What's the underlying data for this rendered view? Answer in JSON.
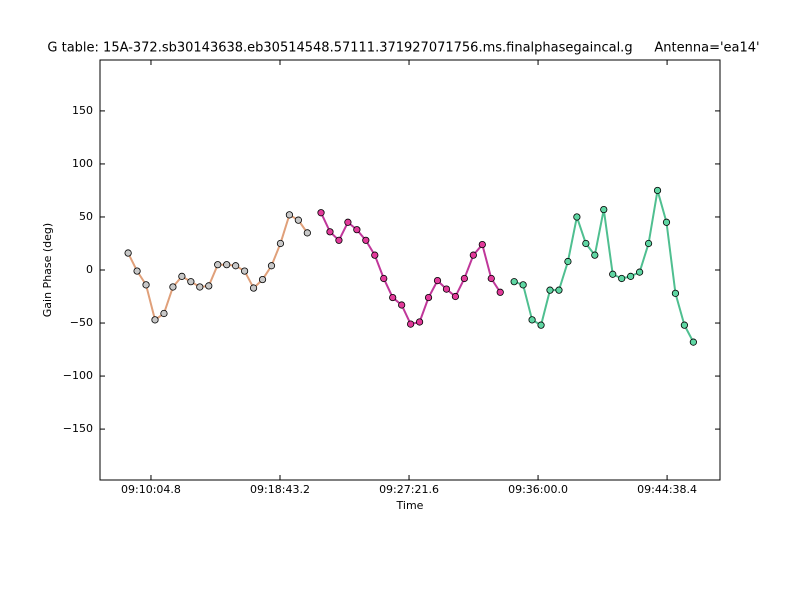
{
  "chart_data": {
    "type": "line",
    "title": "G table: 15A-372.sb30143638.eb30514548.57111.371927071756.ms.finalphasegaincal.g",
    "subtitle": "Antenna='ea14'",
    "x_label": "Time",
    "y_label": "Gain Phase (deg)",
    "xlim": [
      32800,
      35291
    ],
    "ylim": [
      -198,
      198
    ],
    "xticks": [
      {
        "value": 33004.8,
        "label": "09:10:04.8"
      },
      {
        "value": 33523.2,
        "label": "09:18:43.2"
      },
      {
        "value": 34041.6,
        "label": "09:27:21.6"
      },
      {
        "value": 34560,
        "label": "09:36:00.0"
      },
      {
        "value": 35078.4,
        "label": "09:44:38.4"
      }
    ],
    "yticks": [
      {
        "value": -150,
        "label": "−150"
      },
      {
        "value": -100,
        "label": "−100"
      },
      {
        "value": -50,
        "label": "−50"
      },
      0,
      50,
      100,
      150
    ],
    "grid": false,
    "series": [
      {
        "color": "#e0a07a",
        "marker_color": "#c8c8c8",
        "x": [
          32913,
          32949,
          32985,
          33021,
          33057,
          33093,
          33129,
          33165,
          33201,
          33237,
          33273,
          33309,
          33345,
          33381,
          33417,
          33453,
          33489,
          33525,
          33561,
          33597,
          33633
        ],
        "values": [
          16,
          -1,
          -14,
          -47,
          -41,
          -16,
          -6,
          -11,
          -16,
          -15,
          5,
          5,
          4,
          -1,
          -17,
          -9,
          4,
          25,
          52,
          47,
          35
        ]
      },
      {
        "color": "#c0379a",
        "marker_color": "#e23a9a",
        "x": [
          33688,
          33724,
          33760,
          33796,
          33832,
          33868,
          33904,
          33940,
          33976,
          34012,
          34048,
          34084,
          34120,
          34156,
          34192,
          34228,
          34264,
          34300,
          34336,
          34372,
          34408
        ],
        "values": [
          54,
          36,
          28,
          45,
          38,
          28,
          14,
          -8,
          -26,
          -33,
          -51,
          -49,
          -26,
          -10,
          -18,
          -25,
          -8,
          14,
          24,
          -8,
          -21
        ]
      },
      {
        "color": "#4fbf90",
        "marker_color": "#5fd6a3",
        "x": [
          34464,
          34500,
          34536,
          34572,
          34608,
          34644,
          34680,
          34716,
          34752,
          34788,
          34824,
          34860,
          34896,
          34932,
          34968,
          35004,
          35040,
          35076,
          35112,
          35148,
          35184
        ],
        "values": [
          -11,
          -14,
          -47,
          -52,
          -19,
          -19,
          8,
          50,
          25,
          14,
          57,
          -4,
          -8,
          -6,
          -2,
          25,
          75,
          45,
          -22,
          -52,
          -68
        ]
      }
    ]
  }
}
